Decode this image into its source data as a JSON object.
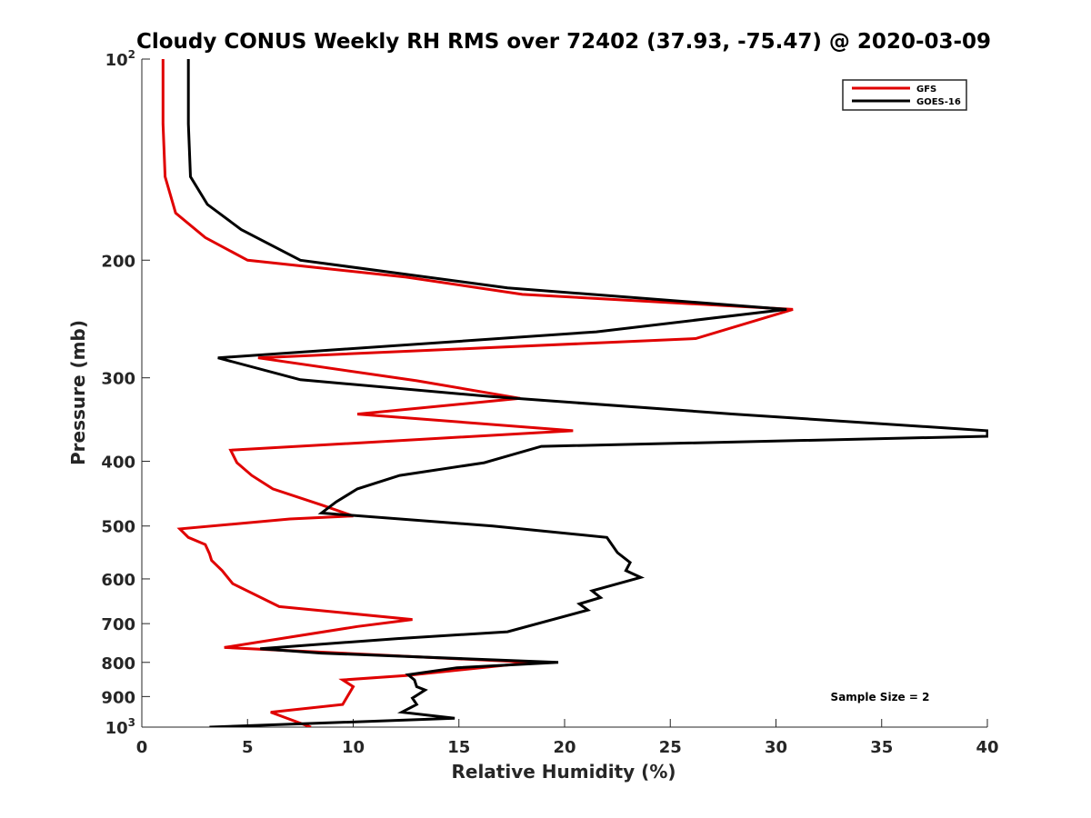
{
  "chart_data": {
    "type": "line",
    "title": "Cloudy CONUS Weekly RH RMS over 72402 (37.93, -75.47) @ 2020-03-09",
    "xlabel": "Relative Humidity (%)",
    "ylabel": "Pressure (mb)",
    "xlim": [
      0,
      40
    ],
    "ylim": [
      100,
      1000
    ],
    "y_scale": "log",
    "y_reversed": true,
    "x_ticks": [
      "0",
      "5",
      "10",
      "15",
      "20",
      "25",
      "30",
      "35",
      "40"
    ],
    "y_ticks": [
      {
        "value": 100,
        "base": "10",
        "exp": "2"
      },
      {
        "value": 200,
        "label": "200"
      },
      {
        "value": 300,
        "label": "300"
      },
      {
        "value": 400,
        "label": "400"
      },
      {
        "value": 500,
        "label": "500"
      },
      {
        "value": 600,
        "label": "600"
      },
      {
        "value": 700,
        "label": "700"
      },
      {
        "value": 800,
        "label": "800"
      },
      {
        "value": 900,
        "label": "900"
      },
      {
        "value": 1000,
        "base": "10",
        "exp": "3"
      }
    ],
    "legend_position": "top-right",
    "annotation": "Sample Size = 2",
    "series": [
      {
        "name": "GFS",
        "color": "#e00000",
        "points": [
          [
            1.0,
            100
          ],
          [
            1.0,
            125
          ],
          [
            1.1,
            150
          ],
          [
            1.6,
            170
          ],
          [
            3.0,
            185
          ],
          [
            5.0,
            200
          ],
          [
            12.5,
            212
          ],
          [
            18.0,
            225
          ],
          [
            30.8,
            237
          ],
          [
            26.2,
            262
          ],
          [
            5.5,
            280
          ],
          [
            13.0,
            303
          ],
          [
            17.9,
            322
          ],
          [
            10.2,
            340
          ],
          [
            20.4,
            360
          ],
          [
            4.2,
            385
          ],
          [
            4.5,
            402
          ],
          [
            5.2,
            420
          ],
          [
            6.2,
            440
          ],
          [
            8.5,
            465
          ],
          [
            10.0,
            483
          ],
          [
            7.0,
            488
          ],
          [
            1.8,
            505
          ],
          [
            2.2,
            520
          ],
          [
            3.0,
            533
          ],
          [
            3.2,
            550
          ],
          [
            3.3,
            563
          ],
          [
            3.8,
            583
          ],
          [
            4.3,
            610
          ],
          [
            6.5,
            660
          ],
          [
            12.8,
            690
          ],
          [
            10.2,
            707
          ],
          [
            3.9,
            760
          ],
          [
            18.5,
            800
          ],
          [
            12.5,
            837
          ],
          [
            9.5,
            850
          ],
          [
            10.0,
            870
          ],
          [
            9.5,
            925
          ],
          [
            6.1,
            950
          ],
          [
            8.0,
            1000
          ]
        ]
      },
      {
        "name": "GOES-16",
        "color": "#000000",
        "points": [
          [
            2.2,
            100
          ],
          [
            2.2,
            125
          ],
          [
            2.3,
            150
          ],
          [
            3.1,
            165
          ],
          [
            4.7,
            180
          ],
          [
            7.5,
            200
          ],
          [
            17.3,
            220
          ],
          [
            30.5,
            237
          ],
          [
            21.5,
            256
          ],
          [
            3.6,
            280
          ],
          [
            7.5,
            302
          ],
          [
            16.5,
            320
          ],
          [
            28.0,
            340
          ],
          [
            40.0,
            360
          ],
          [
            40.0,
            367
          ],
          [
            18.9,
            380
          ],
          [
            16.2,
            402
          ],
          [
            12.2,
            420
          ],
          [
            10.2,
            440
          ],
          [
            9.2,
            460
          ],
          [
            8.5,
            478
          ],
          [
            9.2,
            480
          ],
          [
            16.6,
            500
          ],
          [
            22.0,
            520
          ],
          [
            22.5,
            548
          ],
          [
            23.1,
            567
          ],
          [
            22.9,
            583
          ],
          [
            23.6,
            597
          ],
          [
            21.3,
            625
          ],
          [
            21.7,
            640
          ],
          [
            20.7,
            654
          ],
          [
            21.1,
            668
          ],
          [
            17.3,
            720
          ],
          [
            12.1,
            737
          ],
          [
            5.6,
            763
          ],
          [
            8.5,
            775
          ],
          [
            19.7,
            800
          ],
          [
            14.9,
            815
          ],
          [
            12.6,
            835
          ],
          [
            12.9,
            850
          ],
          [
            13.0,
            870
          ],
          [
            13.4,
            880
          ],
          [
            12.8,
            905
          ],
          [
            13.0,
            925
          ],
          [
            12.3,
            950
          ],
          [
            14.8,
            970
          ],
          [
            3.2,
            1000
          ]
        ]
      }
    ]
  }
}
